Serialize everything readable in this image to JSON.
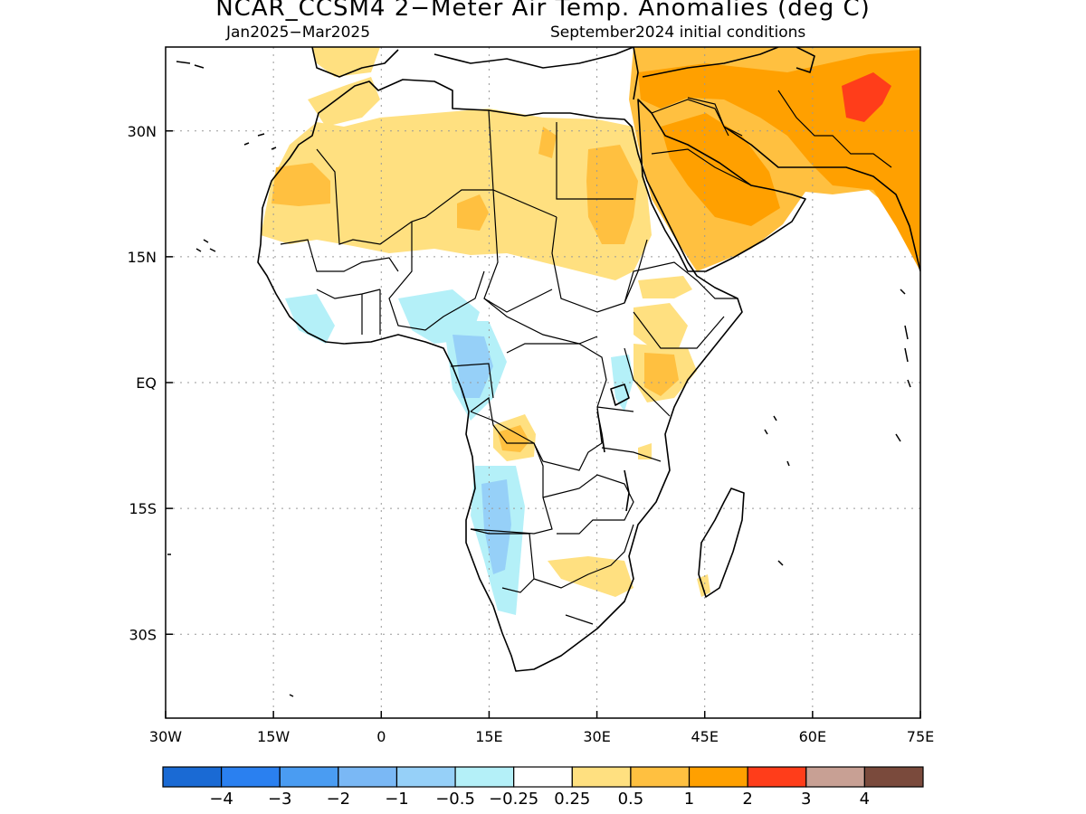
{
  "title": "NCAR_CCSM4 2−Meter Air Temp. Anomalies (deg C)",
  "subtitle_left": "Jan2025−Mar2025",
  "subtitle_right": "September2024 initial conditions",
  "lat_ticks": [
    "30N",
    "15N",
    "EQ",
    "15S",
    "30S"
  ],
  "lon_ticks": [
    "30W",
    "15W",
    "0",
    "15E",
    "30E",
    "45E",
    "60E",
    "75E"
  ],
  "colorbar": {
    "colors": [
      "#1a6ad4",
      "#2a80f0",
      "#4a9cf2",
      "#7ab8f5",
      "#96d0f8",
      "#b4f0f8",
      "#ffffff",
      "#ffe080",
      "#ffc040",
      "#ffa000",
      "#ff3d1a",
      "#c8a094",
      "#7a4a3c"
    ],
    "labels": [
      "−4",
      "−3",
      "−2",
      "−1",
      "−0.5",
      "−0.25",
      "0.25",
      "0.5",
      "1",
      "2",
      "3",
      "4"
    ]
  },
  "chart_data": {
    "type": "heatmap",
    "title": "NCAR_CCSM4 2−Meter Air Temp. Anomalies (deg C)",
    "period": "Jan2025−Mar2025",
    "initial_conditions": "September2024",
    "xlim": [
      -30,
      75
    ],
    "ylim": [
      -40,
      40
    ],
    "units": "deg C",
    "grid": true
  }
}
